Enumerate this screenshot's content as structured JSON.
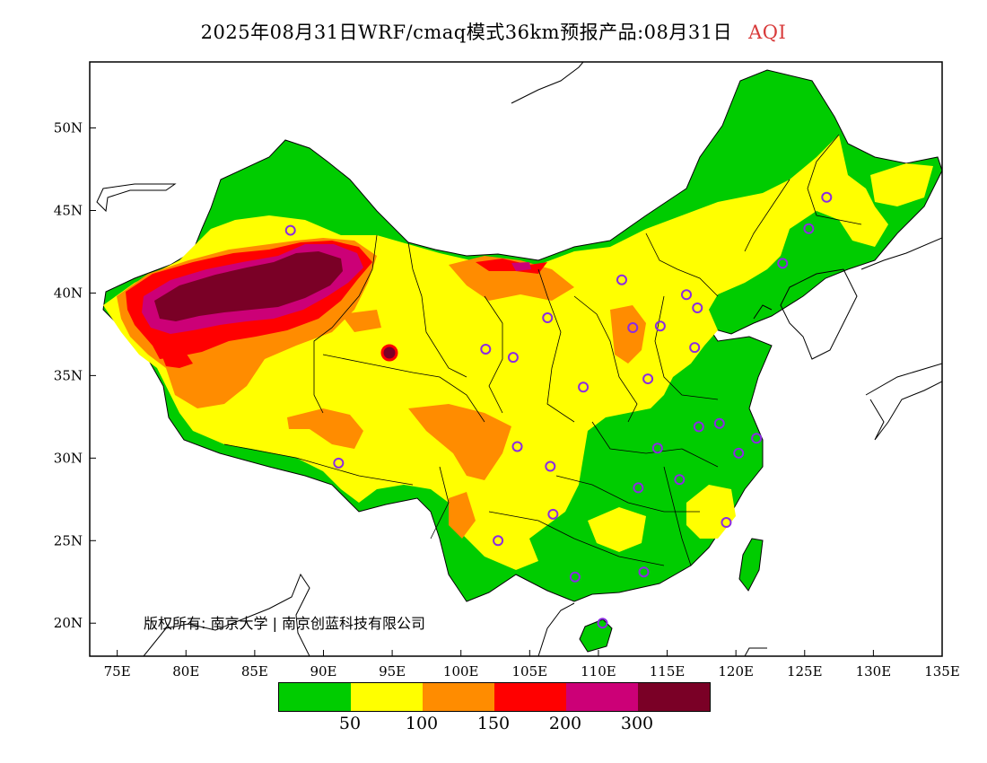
{
  "title": {
    "text": "2025年08月31日WRF/cmaq模式36km预报产品:08月31日",
    "variable": "AQI"
  },
  "map": {
    "lon_range": [
      73,
      135
    ],
    "lat_range": [
      18,
      54
    ],
    "x_ticks": [
      "75E",
      "80E",
      "85E",
      "90E",
      "95E",
      "100E",
      "105E",
      "110E",
      "115E",
      "120E",
      "125E",
      "130E",
      "135E"
    ],
    "y_ticks": [
      "20N",
      "25N",
      "30N",
      "35N",
      "40N",
      "45N",
      "50N"
    ],
    "copyright": "版权所有: 南京大学 | 南京创蓝科技有限公司"
  },
  "legend": {
    "colors": [
      "#00cc00",
      "#ffff00",
      "#ff8c00",
      "#ff0000",
      "#cc0077",
      "#7a0026"
    ],
    "labels": [
      "50",
      "100",
      "150",
      "200",
      "300"
    ]
  },
  "stations": [
    {
      "lon": 87.6,
      "lat": 43.8
    },
    {
      "lon": 91.1,
      "lat": 29.7
    },
    {
      "lon": 101.8,
      "lat": 36.6
    },
    {
      "lon": 103.8,
      "lat": 36.1
    },
    {
      "lon": 106.3,
      "lat": 38.5
    },
    {
      "lon": 111.7,
      "lat": 40.8
    },
    {
      "lon": 116.4,
      "lat": 39.9
    },
    {
      "lon": 117.2,
      "lat": 39.1
    },
    {
      "lon": 114.5,
      "lat": 38.0
    },
    {
      "lon": 112.5,
      "lat": 37.9
    },
    {
      "lon": 108.9,
      "lat": 34.3
    },
    {
      "lon": 113.6,
      "lat": 34.8
    },
    {
      "lon": 117.0,
      "lat": 36.7
    },
    {
      "lon": 123.4,
      "lat": 41.8
    },
    {
      "lon": 125.3,
      "lat": 43.9
    },
    {
      "lon": 126.6,
      "lat": 45.8
    },
    {
      "lon": 104.1,
      "lat": 30.7
    },
    {
      "lon": 106.5,
      "lat": 29.5
    },
    {
      "lon": 106.7,
      "lat": 26.6
    },
    {
      "lon": 102.7,
      "lat": 25.0
    },
    {
      "lon": 108.3,
      "lat": 22.8
    },
    {
      "lon": 113.3,
      "lat": 23.1
    },
    {
      "lon": 110.3,
      "lat": 20.0
    },
    {
      "lon": 119.3,
      "lat": 26.1
    },
    {
      "lon": 115.9,
      "lat": 28.7
    },
    {
      "lon": 112.9,
      "lat": 28.2
    },
    {
      "lon": 114.3,
      "lat": 30.6
    },
    {
      "lon": 117.3,
      "lat": 31.9
    },
    {
      "lon": 118.8,
      "lat": 32.1
    },
    {
      "lon": 120.2,
      "lat": 30.3
    },
    {
      "lon": 121.5,
      "lat": 31.2
    }
  ]
}
